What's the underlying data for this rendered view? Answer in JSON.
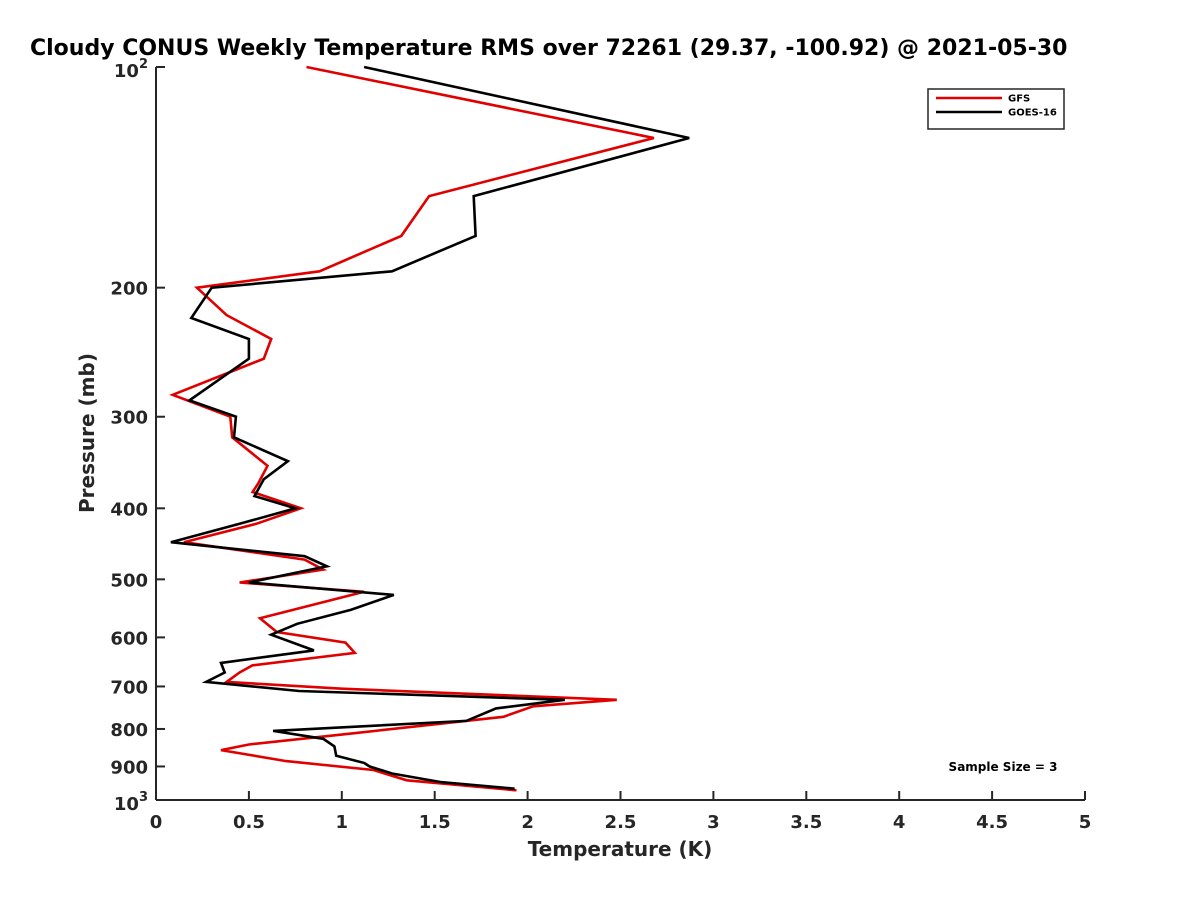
{
  "chart_data": {
    "type": "line",
    "title": "Cloudy CONUS Weekly Temperature RMS over 72261 (29.37, -100.92) @ 2021-05-30",
    "xlabel": "Temperature (K)",
    "ylabel": "Pressure (mb)",
    "xlim": [
      0,
      5
    ],
    "ylim": [
      100,
      1000
    ],
    "y_scale": "log",
    "y_reversed": true,
    "x_ticks": [
      "0",
      "0.5",
      "1",
      "1.5",
      "2",
      "2.5",
      "3",
      "3.5",
      "4",
      "4.5",
      "5"
    ],
    "y_ticks": [
      {
        "value": 100,
        "base": "10",
        "exp": "2"
      },
      {
        "value": 200,
        "label": "200"
      },
      {
        "value": 300,
        "label": "300"
      },
      {
        "value": 400,
        "label": "400"
      },
      {
        "value": 500,
        "label": "500"
      },
      {
        "value": 600,
        "label": "600"
      },
      {
        "value": 700,
        "label": "700"
      },
      {
        "value": 800,
        "label": "800"
      },
      {
        "value": 900,
        "label": "900"
      },
      {
        "value": 1000,
        "base": "10",
        "exp": "3"
      }
    ],
    "grid": false,
    "legend_position": "top-right",
    "annotation": "Sample Size = 3",
    "series": [
      {
        "name": "GFS",
        "color": "#e00000",
        "points": [
          [
            0.81,
            100
          ],
          [
            2.68,
            125
          ],
          [
            1.47,
            150
          ],
          [
            1.32,
            170
          ],
          [
            0.88,
            190
          ],
          [
            0.22,
            200
          ],
          [
            0.38,
            218
          ],
          [
            0.62,
            235
          ],
          [
            0.58,
            250
          ],
          [
            0.09,
            280
          ],
          [
            0.4,
            300
          ],
          [
            0.41,
            320
          ],
          [
            0.6,
            350
          ],
          [
            0.55,
            370
          ],
          [
            0.52,
            380
          ],
          [
            0.78,
            400
          ],
          [
            0.54,
            420
          ],
          [
            0.15,
            445
          ],
          [
            0.8,
            470
          ],
          [
            0.9,
            485
          ],
          [
            0.45,
            505
          ],
          [
            1.12,
            520
          ],
          [
            0.56,
            565
          ],
          [
            0.65,
            590
          ],
          [
            1.02,
            610
          ],
          [
            1.07,
            630
          ],
          [
            0.52,
            655
          ],
          [
            0.45,
            670
          ],
          [
            0.38,
            690
          ],
          [
            1.0,
            705
          ],
          [
            2.48,
            730
          ],
          [
            2.03,
            745
          ],
          [
            1.87,
            770
          ],
          [
            1.08,
            810
          ],
          [
            0.5,
            840
          ],
          [
            0.35,
            855
          ],
          [
            0.7,
            885
          ],
          [
            1.17,
            910
          ],
          [
            1.35,
            940
          ],
          [
            1.94,
            970
          ]
        ]
      },
      {
        "name": "GOES-16",
        "color": "#000000",
        "points": [
          [
            1.12,
            100
          ],
          [
            2.87,
            125
          ],
          [
            1.71,
            150
          ],
          [
            1.72,
            170
          ],
          [
            1.27,
            190
          ],
          [
            0.3,
            200
          ],
          [
            0.19,
            220
          ],
          [
            0.5,
            235
          ],
          [
            0.5,
            250
          ],
          [
            0.18,
            285
          ],
          [
            0.43,
            300
          ],
          [
            0.42,
            320
          ],
          [
            0.71,
            345
          ],
          [
            0.58,
            365
          ],
          [
            0.53,
            385
          ],
          [
            0.75,
            400
          ],
          [
            0.45,
            420
          ],
          [
            0.08,
            445
          ],
          [
            0.8,
            465
          ],
          [
            0.92,
            480
          ],
          [
            0.5,
            505
          ],
          [
            1.28,
            525
          ],
          [
            1.05,
            550
          ],
          [
            0.76,
            575
          ],
          [
            0.62,
            595
          ],
          [
            0.85,
            625
          ],
          [
            0.35,
            650
          ],
          [
            0.37,
            670
          ],
          [
            0.27,
            690
          ],
          [
            0.77,
            710
          ],
          [
            2.2,
            730
          ],
          [
            1.83,
            750
          ],
          [
            1.75,
            765
          ],
          [
            1.67,
            780
          ],
          [
            0.63,
            805
          ],
          [
            0.9,
            825
          ],
          [
            0.96,
            845
          ],
          [
            0.97,
            870
          ],
          [
            1.12,
            890
          ],
          [
            1.15,
            900
          ],
          [
            1.27,
            920
          ],
          [
            1.53,
            945
          ],
          [
            1.93,
            965
          ]
        ]
      }
    ]
  }
}
